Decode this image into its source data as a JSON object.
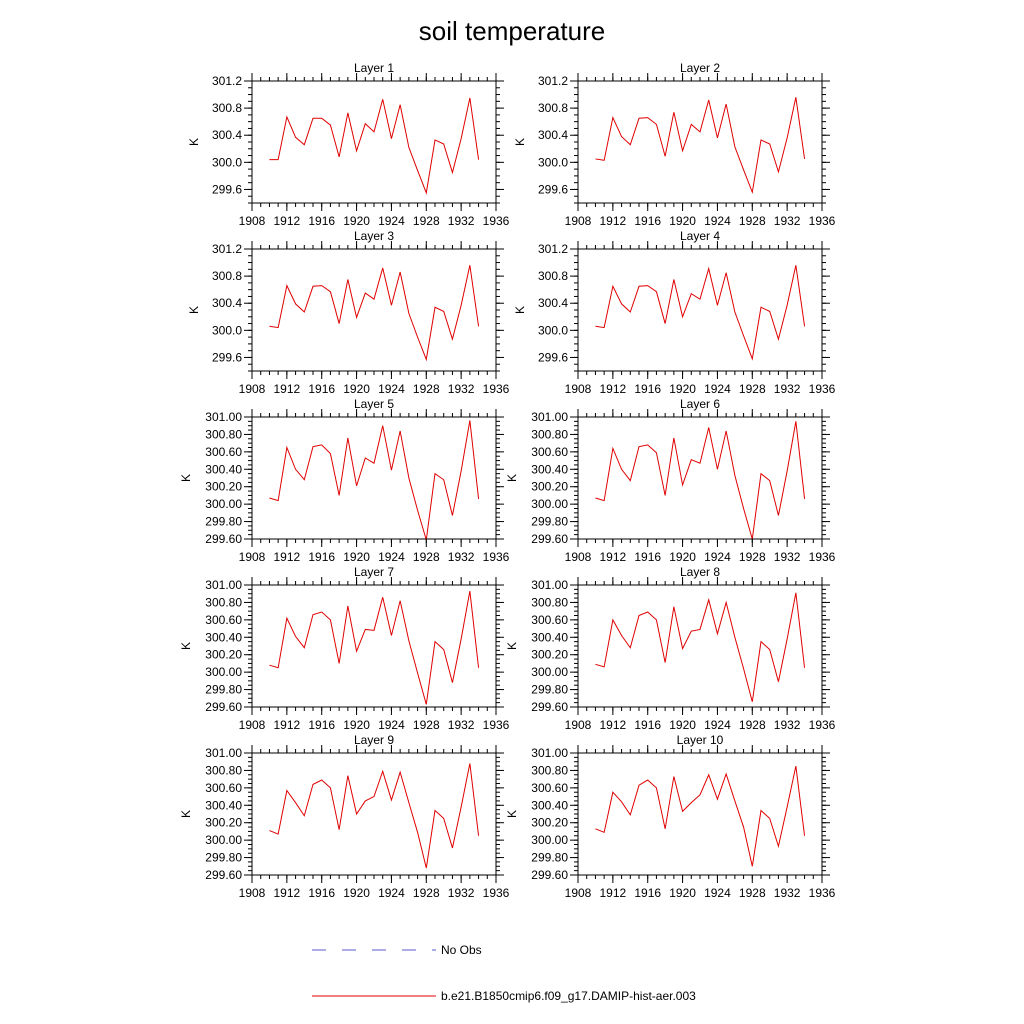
{
  "figure": {
    "title": "soil temperature"
  },
  "legend": [
    {
      "label": "No Obs",
      "color": "#5a5ad0",
      "dash": "dashed"
    },
    {
      "label": "b.e21.B1850cmip6.f09_g17.DAMIP-hist-aer.003",
      "color": "#e00000",
      "dash": "solid"
    }
  ],
  "chart_data": [
    {
      "type": "line",
      "title": "Layer 1",
      "ylabel": "K",
      "xlim": [
        1908,
        1936
      ],
      "ylim": [
        299.4,
        301.2
      ],
      "xticks": [
        1908,
        1912,
        1916,
        1920,
        1924,
        1928,
        1932,
        1936
      ],
      "yticks": [
        "299.6",
        "300.0",
        "300.4",
        "300.8",
        "301.2"
      ],
      "ytick_values": [
        299.6,
        300.0,
        300.4,
        300.8,
        301.2
      ],
      "series": [
        {
          "color": "#e00000",
          "x": [
            1910,
            1911,
            1912,
            1913,
            1914,
            1915,
            1916,
            1917,
            1918,
            1919,
            1920,
            1921,
            1922,
            1923,
            1924,
            1925,
            1926,
            1927,
            1928,
            1929,
            1930,
            1931,
            1932,
            1933,
            1934
          ],
          "y": [
            300.04,
            300.04,
            300.67,
            300.37,
            300.26,
            300.65,
            300.65,
            300.55,
            300.08,
            300.73,
            300.17,
            300.57,
            300.45,
            300.93,
            300.35,
            300.85,
            300.22,
            299.88,
            299.55,
            300.33,
            300.27,
            299.85,
            300.35,
            300.95,
            300.04
          ]
        }
      ]
    },
    {
      "type": "line",
      "title": "Layer 2",
      "ylabel": "K",
      "xlim": [
        1908,
        1936
      ],
      "ylim": [
        299.4,
        301.2
      ],
      "xticks": [
        1908,
        1912,
        1916,
        1920,
        1924,
        1928,
        1932,
        1936
      ],
      "yticks": [
        "299.6",
        "300.0",
        "300.4",
        "300.8",
        "301.2"
      ],
      "ytick_values": [
        299.6,
        300.0,
        300.4,
        300.8,
        301.2
      ],
      "series": [
        {
          "color": "#e00000",
          "x": [
            1910,
            1911,
            1912,
            1913,
            1914,
            1915,
            1916,
            1917,
            1918,
            1919,
            1920,
            1921,
            1922,
            1923,
            1924,
            1925,
            1926,
            1927,
            1928,
            1929,
            1930,
            1931,
            1932,
            1933,
            1934
          ],
          "y": [
            300.05,
            300.03,
            300.66,
            300.38,
            300.26,
            300.65,
            300.66,
            300.56,
            300.09,
            300.74,
            300.17,
            300.56,
            300.45,
            300.92,
            300.36,
            300.86,
            300.23,
            299.89,
            299.56,
            300.33,
            300.27,
            299.86,
            300.36,
            300.96,
            300.05
          ]
        }
      ]
    },
    {
      "type": "line",
      "title": "Layer 3",
      "ylabel": "K",
      "xlim": [
        1908,
        1936
      ],
      "ylim": [
        299.4,
        301.2
      ],
      "xticks": [
        1908,
        1912,
        1916,
        1920,
        1924,
        1928,
        1932,
        1936
      ],
      "yticks": [
        "299.6",
        "300.0",
        "300.4",
        "300.8",
        "301.2"
      ],
      "ytick_values": [
        299.6,
        300.0,
        300.4,
        300.8,
        301.2
      ],
      "series": [
        {
          "color": "#e00000",
          "x": [
            1910,
            1911,
            1912,
            1913,
            1914,
            1915,
            1916,
            1917,
            1918,
            1919,
            1920,
            1921,
            1922,
            1923,
            1924,
            1925,
            1926,
            1927,
            1928,
            1929,
            1930,
            1931,
            1932,
            1933,
            1934
          ],
          "y": [
            300.06,
            300.04,
            300.66,
            300.39,
            300.27,
            300.65,
            300.66,
            300.57,
            300.1,
            300.75,
            300.19,
            300.55,
            300.46,
            300.92,
            300.37,
            300.86,
            300.25,
            299.9,
            299.57,
            300.34,
            300.28,
            299.87,
            300.37,
            300.96,
            300.06
          ]
        }
      ]
    },
    {
      "type": "line",
      "title": "Layer 4",
      "ylabel": "K",
      "xlim": [
        1908,
        1936
      ],
      "ylim": [
        299.4,
        301.2
      ],
      "xticks": [
        1908,
        1912,
        1916,
        1920,
        1924,
        1928,
        1932,
        1936
      ],
      "yticks": [
        "299.6",
        "300.0",
        "300.4",
        "300.8",
        "301.2"
      ],
      "ytick_values": [
        299.6,
        300.0,
        300.4,
        300.8,
        301.2
      ],
      "series": [
        {
          "color": "#e00000",
          "x": [
            1910,
            1911,
            1912,
            1913,
            1914,
            1915,
            1916,
            1917,
            1918,
            1919,
            1920,
            1921,
            1922,
            1923,
            1924,
            1925,
            1926,
            1927,
            1928,
            1929,
            1930,
            1931,
            1932,
            1933,
            1934
          ],
          "y": [
            300.06,
            300.04,
            300.65,
            300.39,
            300.27,
            300.65,
            300.66,
            300.57,
            300.1,
            300.75,
            300.2,
            300.54,
            300.46,
            300.91,
            300.37,
            300.85,
            300.27,
            299.92,
            299.58,
            300.34,
            300.28,
            299.87,
            300.37,
            300.96,
            300.06
          ]
        }
      ]
    },
    {
      "type": "line",
      "title": "Layer 5",
      "ylabel": "K",
      "xlim": [
        1908,
        1936
      ],
      "ylim": [
        299.6,
        301.0
      ],
      "xticks": [
        1908,
        1912,
        1916,
        1920,
        1924,
        1928,
        1932,
        1936
      ],
      "yticks": [
        "299.60",
        "299.80",
        "300.00",
        "300.20",
        "300.40",
        "300.60",
        "300.80",
        "301.00"
      ],
      "ytick_values": [
        299.6,
        299.8,
        300.0,
        300.2,
        300.4,
        300.6,
        300.8,
        301.0
      ],
      "series": [
        {
          "color": "#e00000",
          "x": [
            1910,
            1911,
            1912,
            1913,
            1914,
            1915,
            1916,
            1917,
            1918,
            1919,
            1920,
            1921,
            1922,
            1923,
            1924,
            1925,
            1926,
            1927,
            1928,
            1929,
            1930,
            1931,
            1932,
            1933,
            1934
          ],
          "y": [
            300.07,
            300.04,
            300.65,
            300.4,
            300.28,
            300.66,
            300.68,
            300.58,
            300.1,
            300.76,
            300.21,
            300.53,
            300.47,
            300.9,
            300.39,
            300.84,
            300.3,
            299.93,
            299.59,
            300.35,
            300.28,
            299.87,
            300.38,
            300.96,
            300.06
          ]
        }
      ]
    },
    {
      "type": "line",
      "title": "Layer 6",
      "ylabel": "K",
      "xlim": [
        1908,
        1936
      ],
      "ylim": [
        299.6,
        301.0
      ],
      "xticks": [
        1908,
        1912,
        1916,
        1920,
        1924,
        1928,
        1932,
        1936
      ],
      "yticks": [
        "299.60",
        "299.80",
        "300.00",
        "300.20",
        "300.40",
        "300.60",
        "300.80",
        "301.00"
      ],
      "ytick_values": [
        299.6,
        299.8,
        300.0,
        300.2,
        300.4,
        300.6,
        300.8,
        301.0
      ],
      "series": [
        {
          "color": "#e00000",
          "x": [
            1910,
            1911,
            1912,
            1913,
            1914,
            1915,
            1916,
            1917,
            1918,
            1919,
            1920,
            1921,
            1922,
            1923,
            1924,
            1925,
            1926,
            1927,
            1928,
            1929,
            1930,
            1931,
            1932,
            1933,
            1934
          ],
          "y": [
            300.07,
            300.04,
            300.64,
            300.4,
            300.27,
            300.66,
            300.68,
            300.59,
            300.1,
            300.76,
            300.22,
            300.51,
            300.47,
            300.88,
            300.4,
            300.84,
            300.33,
            299.95,
            299.6,
            300.35,
            300.27,
            299.87,
            300.38,
            300.95,
            300.06
          ]
        }
      ]
    },
    {
      "type": "line",
      "title": "Layer 7",
      "ylabel": "K",
      "xlim": [
        1908,
        1936
      ],
      "ylim": [
        299.6,
        301.0
      ],
      "xticks": [
        1908,
        1912,
        1916,
        1920,
        1924,
        1928,
        1932,
        1936
      ],
      "yticks": [
        "299.60",
        "299.80",
        "300.00",
        "300.20",
        "300.40",
        "300.60",
        "300.80",
        "301.00"
      ],
      "ytick_values": [
        299.6,
        299.8,
        300.0,
        300.2,
        300.4,
        300.6,
        300.8,
        301.0
      ],
      "series": [
        {
          "color": "#e00000",
          "x": [
            1910,
            1911,
            1912,
            1913,
            1914,
            1915,
            1916,
            1917,
            1918,
            1919,
            1920,
            1921,
            1922,
            1923,
            1924,
            1925,
            1926,
            1927,
            1928,
            1929,
            1930,
            1931,
            1932,
            1933,
            1934
          ],
          "y": [
            300.08,
            300.05,
            300.62,
            300.41,
            300.28,
            300.66,
            300.69,
            300.6,
            300.1,
            300.76,
            300.24,
            300.49,
            300.48,
            300.86,
            300.42,
            300.82,
            300.36,
            299.99,
            299.63,
            300.35,
            300.26,
            299.88,
            300.38,
            300.93,
            300.05
          ]
        }
      ]
    },
    {
      "type": "line",
      "title": "Layer 8",
      "ylabel": "K",
      "xlim": [
        1908,
        1936
      ],
      "ylim": [
        299.6,
        301.0
      ],
      "xticks": [
        1908,
        1912,
        1916,
        1920,
        1924,
        1928,
        1932,
        1936
      ],
      "yticks": [
        "299.60",
        "299.80",
        "300.00",
        "300.20",
        "300.40",
        "300.60",
        "300.80",
        "301.00"
      ],
      "ytick_values": [
        299.6,
        299.8,
        300.0,
        300.2,
        300.4,
        300.6,
        300.8,
        301.0
      ],
      "series": [
        {
          "color": "#e00000",
          "x": [
            1910,
            1911,
            1912,
            1913,
            1914,
            1915,
            1916,
            1917,
            1918,
            1919,
            1920,
            1921,
            1922,
            1923,
            1924,
            1925,
            1926,
            1927,
            1928,
            1929,
            1930,
            1931,
            1932,
            1933,
            1934
          ],
          "y": [
            300.09,
            300.06,
            300.6,
            300.42,
            300.28,
            300.65,
            300.69,
            300.6,
            300.11,
            300.75,
            300.27,
            300.47,
            300.49,
            300.83,
            300.44,
            300.8,
            300.4,
            300.04,
            299.66,
            300.35,
            300.26,
            299.89,
            300.38,
            300.91,
            300.05
          ]
        }
      ]
    },
    {
      "type": "line",
      "title": "Layer 9",
      "ylabel": "K",
      "xlim": [
        1908,
        1936
      ],
      "ylim": [
        299.6,
        301.0
      ],
      "xticks": [
        1908,
        1912,
        1916,
        1920,
        1924,
        1928,
        1932,
        1936
      ],
      "yticks": [
        "299.60",
        "299.80",
        "300.00",
        "300.20",
        "300.40",
        "300.60",
        "300.80",
        "301.00"
      ],
      "ytick_values": [
        299.6,
        299.8,
        300.0,
        300.2,
        300.4,
        300.6,
        300.8,
        301.0
      ],
      "series": [
        {
          "color": "#e00000",
          "x": [
            1910,
            1911,
            1912,
            1913,
            1914,
            1915,
            1916,
            1917,
            1918,
            1919,
            1920,
            1921,
            1922,
            1923,
            1924,
            1925,
            1926,
            1927,
            1928,
            1929,
            1930,
            1931,
            1932,
            1933,
            1934
          ],
          "y": [
            300.11,
            300.07,
            300.57,
            300.43,
            300.28,
            300.64,
            300.69,
            300.6,
            300.12,
            300.74,
            300.3,
            300.45,
            300.5,
            300.79,
            300.46,
            300.78,
            300.43,
            300.09,
            299.68,
            300.34,
            300.25,
            299.91,
            300.38,
            300.88,
            300.05
          ]
        }
      ]
    },
    {
      "type": "line",
      "title": "Layer 10",
      "ylabel": "K",
      "xlim": [
        1908,
        1936
      ],
      "ylim": [
        299.6,
        301.0
      ],
      "xticks": [
        1908,
        1912,
        1916,
        1920,
        1924,
        1928,
        1932,
        1936
      ],
      "yticks": [
        "299.60",
        "299.80",
        "300.00",
        "300.20",
        "300.40",
        "300.60",
        "300.80",
        "301.00"
      ],
      "ytick_values": [
        299.6,
        299.8,
        300.0,
        300.2,
        300.4,
        300.6,
        300.8,
        301.0
      ],
      "series": [
        {
          "color": "#e00000",
          "x": [
            1910,
            1911,
            1912,
            1913,
            1914,
            1915,
            1916,
            1917,
            1918,
            1919,
            1920,
            1921,
            1922,
            1923,
            1924,
            1925,
            1926,
            1927,
            1928,
            1929,
            1930,
            1931,
            1932,
            1933,
            1934
          ],
          "y": [
            300.13,
            300.09,
            300.55,
            300.44,
            300.29,
            300.63,
            300.69,
            300.6,
            300.13,
            300.73,
            300.33,
            300.43,
            300.52,
            300.75,
            300.47,
            300.76,
            300.45,
            300.15,
            299.7,
            300.34,
            300.25,
            299.93,
            300.38,
            300.85,
            300.05
          ]
        }
      ]
    }
  ]
}
